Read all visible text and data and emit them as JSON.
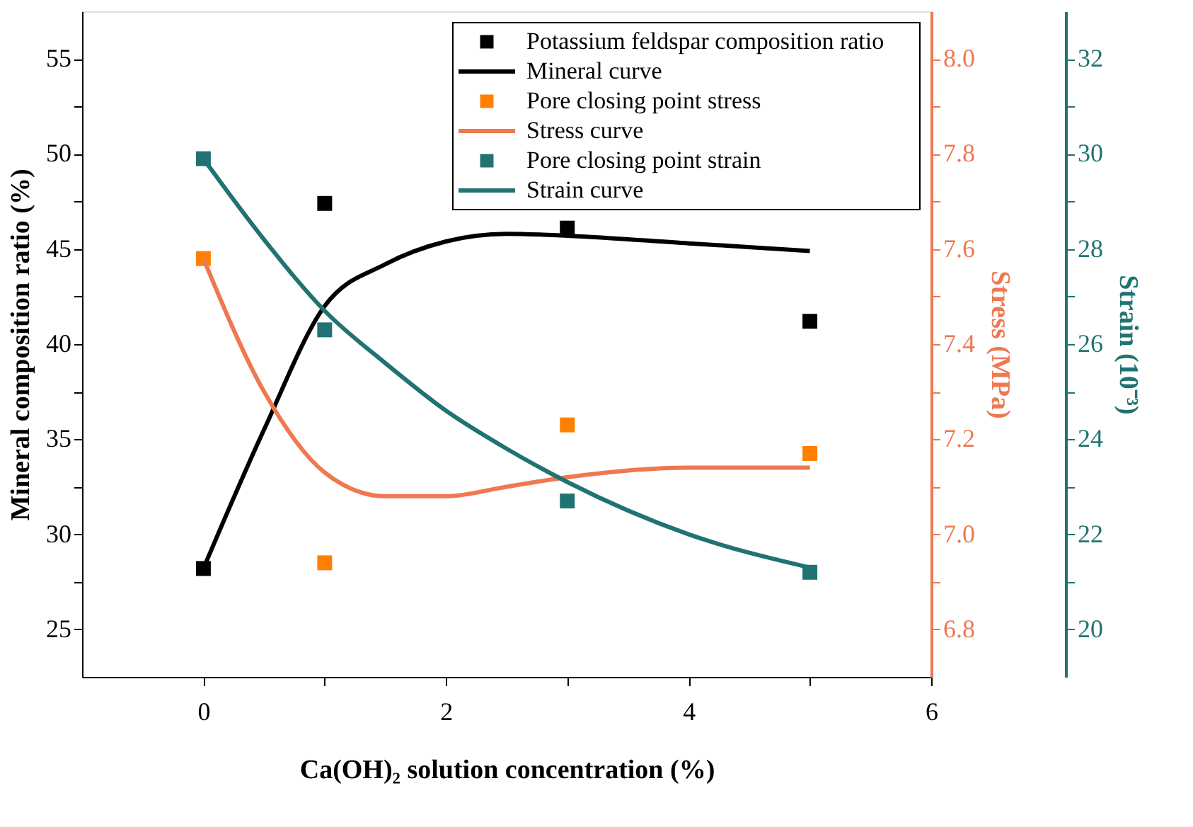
{
  "chart_data": {
    "type": "scatter",
    "xlabel": "Ca(OH)₂ solution concentration (%)",
    "ylabel": "Mineral composition ratio (%)",
    "y2label": "Stress (MPa)",
    "y3label": "Strain (10⁻³)",
    "xlim": [
      -1,
      6
    ],
    "xticks": [
      0,
      {
        "value": 1,
        "label": null
      },
      2,
      {
        "value": 3,
        "label": null
      },
      4,
      {
        "value": 5,
        "label": null
      },
      6
    ],
    "ylim": [
      22.5,
      57.5
    ],
    "yticks": [
      25,
      {
        "value": 27.5,
        "label": null
      },
      30,
      {
        "value": 32.5,
        "label": null
      },
      35,
      {
        "value": 37.5,
        "label": null
      },
      40,
      {
        "value": 42.5,
        "label": null
      },
      45,
      {
        "value": 47.5,
        "label": null
      },
      50,
      {
        "value": 52.5,
        "label": null
      },
      55
    ],
    "y2lim": [
      6.7,
      8.1
    ],
    "y2ticks": [
      6.8,
      {
        "value": 6.9,
        "label": null
      },
      {
        "value": 7,
        "label": "7.0"
      },
      {
        "value": 7.1,
        "label": null
      },
      7.2,
      {
        "value": 7.3,
        "label": null
      },
      7.4,
      {
        "value": 7.5,
        "label": null
      },
      7.6,
      {
        "value": 7.7,
        "label": null
      },
      7.8,
      {
        "value": 7.9,
        "label": null
      },
      {
        "value": 8,
        "label": "8.0"
      }
    ],
    "y3lim": [
      19,
      33
    ],
    "y3ticks": [
      20,
      {
        "value": 21,
        "label": null
      },
      22,
      {
        "value": 23,
        "label": null
      },
      24,
      {
        "value": 25,
        "label": null
      },
      26,
      {
        "value": 27,
        "label": null
      },
      28,
      {
        "value": 29,
        "label": null
      },
      30,
      {
        "value": 31,
        "label": null
      },
      32
    ],
    "legend": "top right",
    "grid": false,
    "series": [
      {
        "name": "Potassium feldspar composition ratio",
        "marker": "square",
        "axis": "y",
        "color": "#000000",
        "x": [
          0,
          1,
          3,
          5
        ],
        "values": [
          28.2,
          47.4,
          46.1,
          41.2
        ]
      },
      {
        "name": "Mineral curve",
        "type": "line",
        "axis": "y",
        "color": "#000000",
        "x": [
          0,
          0.5,
          1,
          1.5,
          2,
          2.5,
          3,
          4,
          5
        ],
        "values": [
          28.2,
          35.5,
          42.0,
          44.2,
          45.4,
          45.8,
          45.7,
          45.3,
          44.9
        ]
      },
      {
        "name": "Pore closing point stress",
        "marker": "square",
        "axis": "y2",
        "color": "#ff8000",
        "x": [
          0,
          1,
          3,
          5
        ],
        "values": [
          7.58,
          6.94,
          7.23,
          7.17
        ]
      },
      {
        "name": "Stress curve",
        "type": "line",
        "axis": "y2",
        "color": "#ef7850",
        "x": [
          0,
          0.5,
          1,
          1.5,
          2,
          2.5,
          3,
          4,
          5
        ],
        "values": [
          7.58,
          7.3,
          7.13,
          7.08,
          7.08,
          7.1,
          7.12,
          7.14,
          7.14
        ]
      },
      {
        "name": "Pore closing point strain",
        "marker": "square",
        "axis": "y3",
        "color": "#217373",
        "x": [
          0,
          1,
          3,
          5
        ],
        "values": [
          29.9,
          26.3,
          22.7,
          21.2
        ]
      },
      {
        "name": "Strain curve",
        "type": "line",
        "axis": "y3",
        "color": "#217373",
        "x": [
          0,
          0.5,
          1,
          1.5,
          2,
          2.5,
          3,
          4,
          5
        ],
        "values": [
          29.9,
          28.2,
          26.7,
          25.6,
          24.6,
          23.8,
          23.1,
          22.0,
          21.3
        ]
      }
    ]
  }
}
